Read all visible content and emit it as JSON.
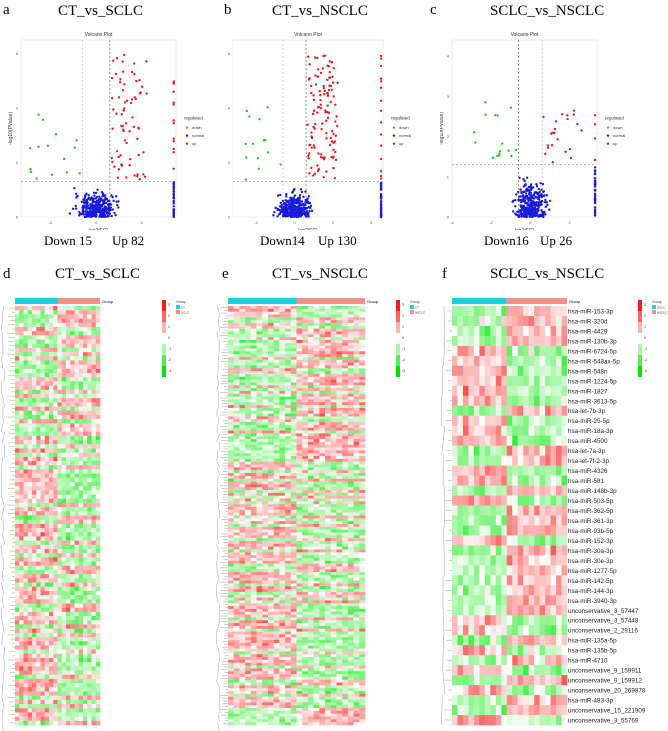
{
  "chart_data": [
    {
      "type": "scatter",
      "panel": "a",
      "heading": "CT_vs_SCLC",
      "title": "Volcano Plot",
      "xlabel": "log2(FC)",
      "ylabel": "-log10(PValue)",
      "xlim": [
        -3.3,
        3.5
      ],
      "ylim": [
        0,
        6.2
      ],
      "xticks": [
        -2,
        0,
        2
      ],
      "yticks": [
        0,
        2,
        4,
        6
      ],
      "fc_threshold_lines": [
        -0.6,
        0.6
      ],
      "p_threshold_line": 1.3,
      "legend": {
        "title": "regulated",
        "placement": "right",
        "entries": [
          "down",
          "normal",
          "up"
        ]
      },
      "colors": {
        "down": "#22cc22",
        "normal": "#1a1adb",
        "up": "#e02020"
      },
      "down_label": "Down 15",
      "up_label": "Up 82",
      "down_count": 15,
      "up_count": 82
    },
    {
      "type": "scatter",
      "panel": "b",
      "heading": "CT_vs_NSCLC",
      "title": "Volcano Plot",
      "xlabel": "log2(FC)",
      "ylabel": "-log10(PValue)",
      "xlim": [
        -3.2,
        4.6
      ],
      "ylim": [
        0,
        6.2
      ],
      "xticks": [
        -2,
        0,
        2,
        4
      ],
      "yticks": [
        0,
        2,
        4,
        6
      ],
      "fc_threshold_lines": [
        -0.6,
        0.6
      ],
      "p_threshold_line": 1.3,
      "legend": {
        "title": "regulated",
        "placement": "right",
        "entries": [
          "down",
          "normal",
          "up"
        ]
      },
      "colors": {
        "down": "#22cc22",
        "normal": "#1a1adb",
        "up": "#e02020"
      },
      "down_label": "Down14",
      "up_label": "Up 130",
      "down_count": 14,
      "up_count": 130
    },
    {
      "type": "scatter",
      "panel": "c",
      "heading": "SCLC_vs_NSCLC",
      "title": "Volcano Plot",
      "xlabel": "log2(FC)",
      "ylabel": "-log10(PValue)",
      "xlim": [
        -4,
        3.4
      ],
      "ylim": [
        0,
        4.2
      ],
      "xticks": [
        -4,
        -2,
        0,
        2
      ],
      "yticks": [
        0,
        1,
        2,
        3,
        4
      ],
      "fc_threshold_lines": [
        -0.6,
        0.6
      ],
      "p_threshold_line": 1.3,
      "legend": {
        "title": "regulated",
        "placement": "right",
        "entries": [
          "down",
          "normal",
          "up"
        ]
      },
      "colors": {
        "down": "#22cc22",
        "normal": "#1a1adb",
        "up": "#e02020"
      },
      "down_label": "Down16",
      "up_label": "Up 26",
      "down_count": 16,
      "up_count": 26
    },
    {
      "type": "heatmap",
      "panel": "d",
      "heading": "CT_vs_SCLC",
      "group_title": "Group",
      "groups": [
        "CT",
        "SCLC"
      ],
      "group_colors": [
        "#22cde0",
        "#f4908a"
      ],
      "scale_ticks": [
        3,
        2,
        1,
        0,
        -1,
        -2,
        -3
      ],
      "scale_colors": [
        "#ff0000",
        "#ffffff",
        "#00ee00"
      ]
    },
    {
      "type": "heatmap",
      "panel": "e",
      "heading": "CT_vs_NSCLC",
      "group_title": "Group",
      "groups": [
        "CT",
        "NSCLC"
      ],
      "group_colors": [
        "#22cde0",
        "#f4908a"
      ],
      "scale_ticks": [
        3,
        2,
        1,
        0,
        -1,
        -2,
        -3
      ],
      "scale_colors": [
        "#ff0000",
        "#ffffff",
        "#00ee00"
      ]
    },
    {
      "type": "heatmap",
      "panel": "f",
      "heading": "SCLC_vs_NSCLC",
      "group_title": "Group",
      "groups": [
        "SCLC",
        "NSCLC"
      ],
      "group_colors": [
        "#22cde0",
        "#f4908a"
      ],
      "scale_ticks": [
        3,
        2,
        1,
        0,
        -1,
        -2,
        -3
      ],
      "scale_colors": [
        "#ff0000",
        "#ffffff",
        "#00ee00"
      ],
      "rows": [
        "hsa-miR-153-3p",
        "hsa-miR-320d",
        "hsa-miR-4429",
        "hsa-miR-130b-3p",
        "hsa-miR-6724-5p",
        "hsa-miR-548ax-5p",
        "hsa-miR-548n",
        "hsa-miR-1224-5p",
        "hsa-miR-1827",
        "hsa-miR-3613-5p",
        "hsa-let-7b-3p",
        "hsa-miR-25-5p",
        "hsa-miR-18a-3p",
        "hsa-miR-4500",
        "hsa-let-7a-3p",
        "hsa-let-7f-2-3p",
        "hsa-miR-4326",
        "hsa-miR-581",
        "hsa-miR-148b-3p",
        "hsa-miR-503-5p",
        "hsa-miR-362-5p",
        "hsa-miR-361-3p",
        "hsa-miR-93b-5p",
        "hsa-miR-152-3p",
        "hsa-miR-30a-3p",
        "hsa-miR-30e-3p",
        "hsa-miR-1277-5p",
        "hsa-miR-142-5p",
        "hsa-miR-144-3p",
        "hsa-miR-3940-3p",
        "unconservative_3_57447",
        "unconservative_3_57448",
        "unconservative_2_29116",
        "hsa-miR-135a-5p",
        "hsa-miR-135b-5p",
        "hsa-miR-4710",
        "unconservative_9_159911",
        "unconservative_9_159912",
        "unconservative_20_269878",
        "hsa-miR-483-3p",
        "unconservative_15_221909",
        "unconservative_3_55769"
      ]
    }
  ]
}
